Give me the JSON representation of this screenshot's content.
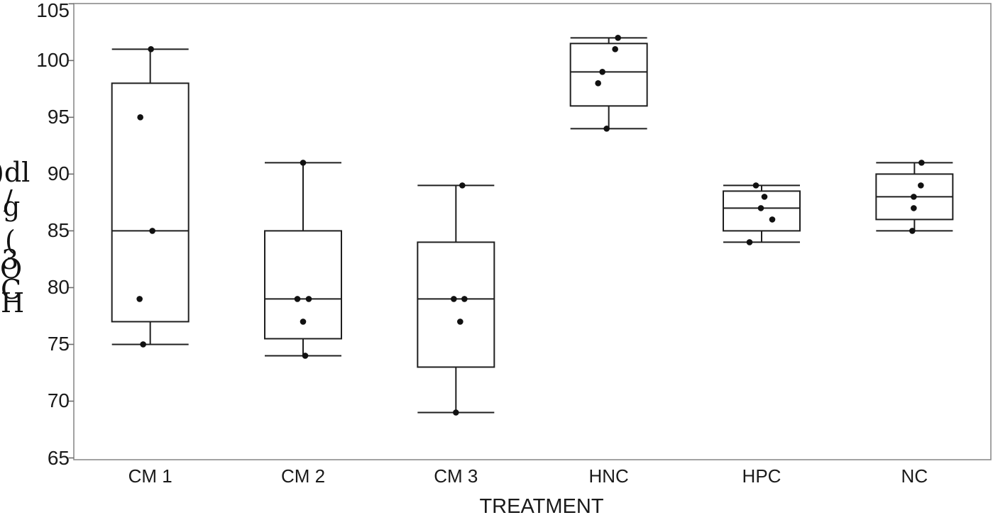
{
  "chart_data": {
    "type": "boxplot",
    "title": "",
    "xlabel": "TREATMENT",
    "ylabel_visible_glyphs": [
      ")dl",
      "/",
      "g",
      "(",
      "3",
      "O",
      "C",
      "H"
    ],
    "ylabel_reconstructed": "HCO3 (g/dl)",
    "ylim": [
      65,
      105
    ],
    "yticks": [
      65,
      70,
      75,
      80,
      85,
      90,
      95,
      100,
      105
    ],
    "grid": false,
    "legend": "none",
    "categories": [
      "CM 1",
      "CM 2",
      "CM 3",
      "HNC",
      "HPC",
      "NC"
    ],
    "boxes": [
      {
        "label": "CM 1",
        "min": 75,
        "q1": 77,
        "median": 85,
        "q3": 98,
        "max": 101,
        "points": [
          {
            "value": 101,
            "dx": 1
          },
          {
            "value": 95,
            "dx": -14
          },
          {
            "value": 85,
            "dx": 3
          },
          {
            "value": 79,
            "dx": -15
          },
          {
            "value": 75,
            "dx": -10
          }
        ]
      },
      {
        "label": "CM 2",
        "min": 74,
        "q1": 75.5,
        "median": 79,
        "q3": 85,
        "max": 91,
        "points": [
          {
            "value": 91,
            "dx": 0
          },
          {
            "value": 79,
            "dx": -8
          },
          {
            "value": 79,
            "dx": 8
          },
          {
            "value": 77,
            "dx": 0
          },
          {
            "value": 74,
            "dx": 3
          }
        ]
      },
      {
        "label": "CM 3",
        "min": 69,
        "q1": 73,
        "median": 79,
        "q3": 84,
        "max": 89,
        "points": [
          {
            "value": 89,
            "dx": 9
          },
          {
            "value": 79,
            "dx": -3
          },
          {
            "value": 79,
            "dx": 12
          },
          {
            "value": 77,
            "dx": 6
          },
          {
            "value": 69,
            "dx": 0
          }
        ]
      },
      {
        "label": "HNC",
        "min": 94,
        "q1": 96,
        "median": 99,
        "q3": 101.5,
        "max": 102,
        "points": [
          {
            "value": 102,
            "dx": 13
          },
          {
            "value": 101,
            "dx": 9
          },
          {
            "value": 99,
            "dx": -9
          },
          {
            "value": 98,
            "dx": -15
          },
          {
            "value": 94,
            "dx": -3
          }
        ]
      },
      {
        "label": "HPC",
        "min": 84,
        "q1": 85,
        "median": 87,
        "q3": 88.5,
        "max": 89,
        "points": [
          {
            "value": 89,
            "dx": -8
          },
          {
            "value": 88,
            "dx": 4
          },
          {
            "value": 87,
            "dx": -1
          },
          {
            "value": 86,
            "dx": 15
          },
          {
            "value": 84,
            "dx": -17
          }
        ]
      },
      {
        "label": "NC",
        "min": 85,
        "q1": 86,
        "median": 88,
        "q3": 90,
        "max": 91,
        "points": [
          {
            "value": 91,
            "dx": 10
          },
          {
            "value": 89,
            "dx": 9
          },
          {
            "value": 88,
            "dx": -1
          },
          {
            "value": 87,
            "dx": -1
          },
          {
            "value": 85,
            "dx": -3
          }
        ]
      }
    ],
    "colors": {
      "box_stroke": "#1f1f1f",
      "point_fill": "#111111",
      "plot_border": "#8c8c8c",
      "tick_mark": "#6e6e6e",
      "text": "#1a1a1a",
      "background": "#ffffff"
    }
  }
}
